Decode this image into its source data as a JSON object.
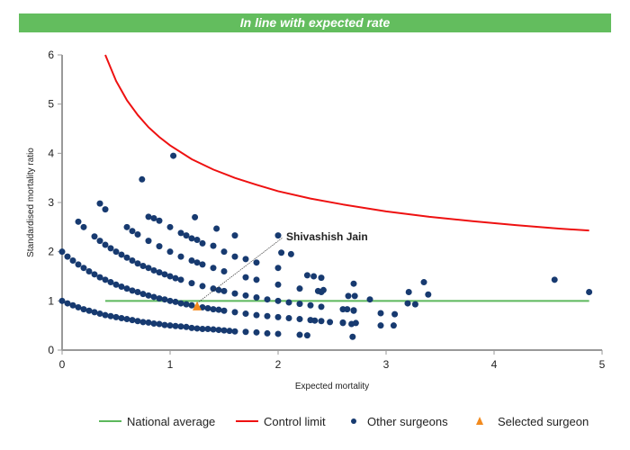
{
  "banner": {
    "text": "In line with expected rate",
    "color": "#63bd5e"
  },
  "chart_data": {
    "type": "scatter",
    "xlabel": "Expected mortality",
    "ylabel": "Standardised mortality ratio",
    "xlim": [
      0,
      5
    ],
    "ylim": [
      0,
      6
    ],
    "xticks": [
      "0",
      "1",
      "2",
      "3",
      "4",
      "5"
    ],
    "yticks": [
      "0",
      "1",
      "2",
      "3",
      "4",
      "5",
      "6"
    ],
    "grid": false,
    "legend_placement": "bottom-right",
    "legend": [
      {
        "label": "National average",
        "kind": "line",
        "color": "#5cb85c"
      },
      {
        "label": "Control limit",
        "kind": "line",
        "color": "#ee1111"
      },
      {
        "label": "Other surgeons",
        "kind": "dot",
        "color": "#173a70"
      },
      {
        "label": "Selected surgeon",
        "kind": "triangle",
        "color": "#f28a1e"
      }
    ],
    "national_average": {
      "y": 1,
      "x_range": [
        0.4,
        4.88
      ]
    },
    "control_limit": [
      [
        0.4,
        6.0
      ],
      [
        0.5,
        5.47
      ],
      [
        0.6,
        5.08
      ],
      [
        0.7,
        4.78
      ],
      [
        0.8,
        4.53
      ],
      [
        0.9,
        4.33
      ],
      [
        1.0,
        4.16
      ],
      [
        1.2,
        3.88
      ],
      [
        1.4,
        3.67
      ],
      [
        1.6,
        3.5
      ],
      [
        1.8,
        3.36
      ],
      [
        2.0,
        3.23
      ],
      [
        2.3,
        3.08
      ],
      [
        2.6,
        2.96
      ],
      [
        3.0,
        2.82
      ],
      [
        3.4,
        2.71
      ],
      [
        3.8,
        2.62
      ],
      [
        4.2,
        2.54
      ],
      [
        4.6,
        2.47
      ],
      [
        4.88,
        2.43
      ]
    ],
    "other_surgeons": [
      [
        0,
        1.0
      ],
      [
        0.05,
        0.95
      ],
      [
        0.1,
        0.91
      ],
      [
        0.15,
        0.87
      ],
      [
        0.2,
        0.83
      ],
      [
        0.25,
        0.8
      ],
      [
        0.3,
        0.77
      ],
      [
        0.35,
        0.74
      ],
      [
        0.4,
        0.71
      ],
      [
        0.45,
        0.69
      ],
      [
        0.5,
        0.67
      ],
      [
        0.55,
        0.65
      ],
      [
        0.6,
        0.63
      ],
      [
        0.65,
        0.61
      ],
      [
        0.7,
        0.59
      ],
      [
        0.75,
        0.57
      ],
      [
        0.8,
        0.56
      ],
      [
        0.85,
        0.54
      ],
      [
        0.9,
        0.53
      ],
      [
        0.95,
        0.51
      ],
      [
        1.0,
        0.5
      ],
      [
        1.05,
        0.49
      ],
      [
        1.1,
        0.48
      ],
      [
        1.15,
        0.47
      ],
      [
        1.2,
        0.45
      ],
      [
        1.25,
        0.44
      ],
      [
        1.3,
        0.43
      ],
      [
        1.35,
        0.43
      ],
      [
        1.4,
        0.42
      ],
      [
        1.45,
        0.41
      ],
      [
        1.5,
        0.4
      ],
      [
        1.55,
        0.39
      ],
      [
        1.6,
        0.38
      ],
      [
        1.7,
        0.37
      ],
      [
        1.8,
        0.36
      ],
      [
        1.9,
        0.34
      ],
      [
        2.0,
        0.33
      ],
      [
        2.2,
        0.31
      ],
      [
        0,
        2.0
      ],
      [
        0.05,
        1.9
      ],
      [
        0.1,
        1.82
      ],
      [
        0.15,
        1.74
      ],
      [
        0.2,
        1.67
      ],
      [
        0.25,
        1.6
      ],
      [
        0.3,
        1.54
      ],
      [
        0.35,
        1.48
      ],
      [
        0.4,
        1.43
      ],
      [
        0.45,
        1.38
      ],
      [
        0.5,
        1.33
      ],
      [
        0.55,
        1.29
      ],
      [
        0.6,
        1.25
      ],
      [
        0.65,
        1.21
      ],
      [
        0.7,
        1.18
      ],
      [
        0.75,
        1.14
      ],
      [
        0.8,
        1.11
      ],
      [
        0.85,
        1.08
      ],
      [
        0.9,
        1.05
      ],
      [
        0.95,
        1.03
      ],
      [
        1.0,
        1.0
      ],
      [
        1.05,
        0.98
      ],
      [
        1.1,
        0.95
      ],
      [
        1.15,
        0.93
      ],
      [
        1.2,
        0.91
      ],
      [
        1.3,
        0.87
      ],
      [
        1.35,
        0.85
      ],
      [
        1.4,
        0.83
      ],
      [
        1.45,
        0.82
      ],
      [
        1.5,
        0.8
      ],
      [
        1.6,
        0.77
      ],
      [
        1.7,
        0.74
      ],
      [
        1.8,
        0.71
      ],
      [
        1.9,
        0.69
      ],
      [
        2.0,
        0.67
      ],
      [
        2.1,
        0.65
      ],
      [
        2.2,
        0.63
      ],
      [
        2.3,
        0.61
      ],
      [
        2.4,
        0.59
      ],
      [
        2.6,
        0.56
      ],
      [
        0.15,
        2.61
      ],
      [
        0.2,
        2.5
      ],
      [
        0.3,
        2.31
      ],
      [
        0.35,
        2.22
      ],
      [
        0.4,
        2.14
      ],
      [
        0.45,
        2.07
      ],
      [
        0.5,
        2.0
      ],
      [
        0.55,
        1.94
      ],
      [
        0.6,
        1.88
      ],
      [
        0.65,
        1.82
      ],
      [
        0.7,
        1.76
      ],
      [
        0.75,
        1.71
      ],
      [
        0.8,
        1.67
      ],
      [
        0.85,
        1.62
      ],
      [
        0.9,
        1.58
      ],
      [
        0.95,
        1.54
      ],
      [
        1.0,
        1.5
      ],
      [
        1.05,
        1.46
      ],
      [
        1.1,
        1.43
      ],
      [
        1.2,
        1.36
      ],
      [
        1.3,
        1.3
      ],
      [
        1.4,
        1.25
      ],
      [
        1.45,
        1.22
      ],
      [
        1.5,
        1.2
      ],
      [
        1.6,
        1.15
      ],
      [
        1.7,
        1.11
      ],
      [
        1.8,
        1.07
      ],
      [
        1.9,
        1.03
      ],
      [
        2.0,
        1.0
      ],
      [
        2.1,
        0.97
      ],
      [
        2.2,
        0.94
      ],
      [
        2.3,
        0.91
      ],
      [
        2.4,
        0.88
      ],
      [
        2.6,
        0.83
      ],
      [
        2.7,
        0.81
      ],
      [
        0.35,
        2.98
      ],
      [
        0.4,
        2.86
      ],
      [
        0.6,
        2.5
      ],
      [
        0.65,
        2.42
      ],
      [
        0.7,
        2.35
      ],
      [
        0.8,
        2.22
      ],
      [
        0.9,
        2.11
      ],
      [
        1.0,
        2.0
      ],
      [
        1.1,
        1.9
      ],
      [
        1.2,
        1.82
      ],
      [
        1.25,
        1.78
      ],
      [
        1.3,
        1.74
      ],
      [
        1.4,
        1.67
      ],
      [
        1.5,
        1.6
      ],
      [
        1.7,
        1.48
      ],
      [
        1.8,
        1.43
      ],
      [
        2.0,
        1.33
      ],
      [
        2.2,
        1.25
      ],
      [
        2.4,
        1.18
      ],
      [
        0.8,
        2.71
      ],
      [
        0.85,
        2.68
      ],
      [
        0.9,
        2.63
      ],
      [
        1.0,
        2.5
      ],
      [
        1.1,
        2.38
      ],
      [
        1.15,
        2.33
      ],
      [
        1.2,
        2.27
      ],
      [
        1.25,
        2.24
      ],
      [
        1.3,
        2.17
      ],
      [
        1.4,
        2.12
      ],
      [
        1.5,
        2.0
      ],
      [
        1.6,
        1.9
      ],
      [
        1.7,
        1.85
      ],
      [
        1.8,
        1.78
      ],
      [
        2.0,
        1.67
      ],
      [
        0.74,
        3.47
      ],
      [
        1.03,
        3.95
      ],
      [
        1.23,
        2.7
      ],
      [
        1.43,
        2.47
      ],
      [
        1.6,
        2.33
      ],
      [
        2.0,
        2.33
      ],
      [
        2.03,
        1.98
      ],
      [
        2.12,
        1.95
      ],
      [
        2.27,
        1.52
      ],
      [
        2.33,
        1.5
      ],
      [
        2.4,
        1.47
      ],
      [
        2.37,
        1.2
      ],
      [
        2.42,
        1.22
      ],
      [
        2.65,
        1.1
      ],
      [
        2.7,
        1.35
      ],
      [
        2.71,
        1.1
      ],
      [
        2.85,
        1.03
      ],
      [
        2.95,
        0.75
      ],
      [
        3.08,
        0.73
      ],
      [
        3.21,
        1.18
      ],
      [
        3.2,
        0.95
      ],
      [
        3.27,
        0.93
      ],
      [
        3.35,
        1.38
      ],
      [
        3.39,
        1.13
      ],
      [
        4.56,
        1.43
      ],
      [
        4.88,
        1.18
      ],
      [
        2.64,
        0.83
      ],
      [
        2.7,
        0.8
      ],
      [
        2.6,
        0.55
      ],
      [
        2.68,
        0.53
      ],
      [
        2.72,
        0.55
      ],
      [
        2.95,
        0.5
      ],
      [
        3.07,
        0.5
      ],
      [
        2.69,
        0.27
      ],
      [
        2.27,
        0.3
      ],
      [
        2.48,
        0.57
      ],
      [
        2.34,
        0.6
      ]
    ],
    "selected_surgeon": {
      "x": 1.25,
      "y": 0.88,
      "label": "Shivashish Jain"
    }
  }
}
